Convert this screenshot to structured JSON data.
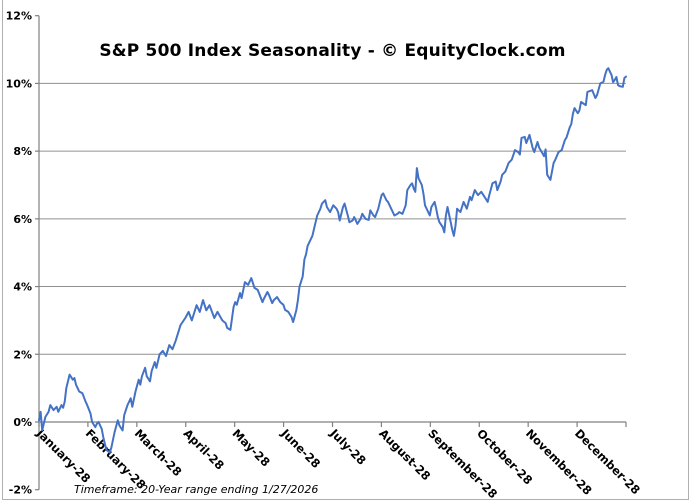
{
  "chart_data": {
    "type": "line",
    "title": "S&P 500 Index Seasonality - © EquityClock.com",
    "timeframe_note": "Timeframe: 20-Year range ending 1/27/2026",
    "legend": "none",
    "grid": "horizontal",
    "x_axis": {
      "categories": [
        "January-28",
        "February-28",
        "March-28",
        "April-28",
        "May-28",
        "June-28",
        "July-28",
        "August-28",
        "September-28",
        "October-28",
        "November-28",
        "December-28"
      ],
      "tick_count": 13,
      "label_rotation_deg": 45
    },
    "y_axis": {
      "min": -2,
      "max": 12,
      "step": 2,
      "tick_labels": [
        "12%",
        "10%",
        "8%",
        "6%",
        "4%",
        "2%",
        "0%",
        "-2%"
      ],
      "unit": "percent"
    },
    "points_unit": {
      "x": "day_of_year (0-365)",
      "y": "percent_change"
    },
    "points": [
      [
        0,
        0.05
      ],
      [
        1,
        0.3
      ],
      [
        2,
        -0.25
      ],
      [
        4,
        0.15
      ],
      [
        6,
        0.3
      ],
      [
        7,
        0.5
      ],
      [
        9,
        0.35
      ],
      [
        11,
        0.45
      ],
      [
        12,
        0.3
      ],
      [
        14,
        0.5
      ],
      [
        15,
        0.42
      ],
      [
        16,
        0.6
      ],
      [
        17,
        1.0
      ],
      [
        19,
        1.4
      ],
      [
        21,
        1.25
      ],
      [
        22,
        1.3
      ],
      [
        23,
        1.1
      ],
      [
        24,
        1.0
      ],
      [
        25,
        0.9
      ],
      [
        27,
        0.85
      ],
      [
        29,
        0.6
      ],
      [
        30,
        0.5
      ],
      [
        32,
        0.25
      ],
      [
        33,
        0.0
      ],
      [
        35,
        -0.15
      ],
      [
        36,
        -0.05
      ],
      [
        37,
        0.0
      ],
      [
        39,
        -0.2
      ],
      [
        40,
        -0.45
      ],
      [
        41,
        -0.65
      ],
      [
        42,
        -0.83
      ],
      [
        44,
        -0.9
      ],
      [
        45,
        -0.75
      ],
      [
        47,
        -0.3
      ],
      [
        49,
        0.05
      ],
      [
        50,
        -0.1
      ],
      [
        52,
        -0.25
      ],
      [
        53,
        0.2
      ],
      [
        55,
        0.5
      ],
      [
        57,
        0.7
      ],
      [
        58,
        0.45
      ],
      [
        60,
        0.9
      ],
      [
        62,
        1.25
      ],
      [
        63,
        1.1
      ],
      [
        64,
        1.35
      ],
      [
        66,
        1.6
      ],
      [
        67,
        1.35
      ],
      [
        69,
        1.2
      ],
      [
        70,
        1.5
      ],
      [
        72,
        1.77
      ],
      [
        73,
        1.6
      ],
      [
        75,
        2.0
      ],
      [
        77,
        2.1
      ],
      [
        79,
        1.95
      ],
      [
        81,
        2.27
      ],
      [
        83,
        2.15
      ],
      [
        85,
        2.4
      ],
      [
        88,
        2.86
      ],
      [
        91,
        3.07
      ],
      [
        93,
        3.25
      ],
      [
        95,
        3.0
      ],
      [
        98,
        3.45
      ],
      [
        100,
        3.25
      ],
      [
        102,
        3.6
      ],
      [
        104,
        3.3
      ],
      [
        106,
        3.45
      ],
      [
        109,
        3.07
      ],
      [
        111,
        3.25
      ],
      [
        114,
        3.0
      ],
      [
        116,
        2.92
      ],
      [
        117,
        2.78
      ],
      [
        119,
        2.72
      ],
      [
        121,
        3.4
      ],
      [
        122,
        3.54
      ],
      [
        123,
        3.46
      ],
      [
        125,
        3.81
      ],
      [
        126,
        3.66
      ],
      [
        128,
        4.13
      ],
      [
        130,
        4.05
      ],
      [
        132,
        4.25
      ],
      [
        134,
        3.96
      ],
      [
        136,
        3.9
      ],
      [
        139,
        3.54
      ],
      [
        140,
        3.66
      ],
      [
        142,
        3.84
      ],
      [
        143,
        3.75
      ],
      [
        145,
        3.51
      ],
      [
        146,
        3.6
      ],
      [
        148,
        3.69
      ],
      [
        150,
        3.54
      ],
      [
        152,
        3.46
      ],
      [
        153,
        3.31
      ],
      [
        155,
        3.25
      ],
      [
        157,
        3.1
      ],
      [
        158,
        2.95
      ],
      [
        160,
        3.3
      ],
      [
        161,
        3.6
      ],
      [
        162,
        4.0
      ],
      [
        164,
        4.3
      ],
      [
        165,
        4.8
      ],
      [
        166,
        4.95
      ],
      [
        167,
        5.2
      ],
      [
        169,
        5.4
      ],
      [
        170,
        5.5
      ],
      [
        171,
        5.7
      ],
      [
        172,
        5.9
      ],
      [
        173,
        6.1
      ],
      [
        175,
        6.3
      ],
      [
        176,
        6.45
      ],
      [
        178,
        6.55
      ],
      [
        179,
        6.35
      ],
      [
        181,
        6.2
      ],
      [
        183,
        6.4
      ],
      [
        185,
        6.3
      ],
      [
        186,
        6.2
      ],
      [
        187,
        5.95
      ],
      [
        189,
        6.35
      ],
      [
        190,
        6.45
      ],
      [
        192,
        6.1
      ],
      [
        193,
        5.9
      ],
      [
        195,
        5.95
      ],
      [
        196,
        6.05
      ],
      [
        198,
        5.85
      ],
      [
        200,
        6.0
      ],
      [
        201,
        6.15
      ],
      [
        203,
        6.0
      ],
      [
        205,
        5.97
      ],
      [
        206,
        6.25
      ],
      [
        208,
        6.1
      ],
      [
        209,
        6.05
      ],
      [
        211,
        6.3
      ],
      [
        212,
        6.5
      ],
      [
        213,
        6.7
      ],
      [
        214,
        6.75
      ],
      [
        216,
        6.55
      ],
      [
        217,
        6.5
      ],
      [
        218,
        6.4
      ],
      [
        220,
        6.2
      ],
      [
        221,
        6.1
      ],
      [
        223,
        6.15
      ],
      [
        224,
        6.2
      ],
      [
        226,
        6.15
      ],
      [
        228,
        6.4
      ],
      [
        229,
        6.85
      ],
      [
        231,
        7.0
      ],
      [
        232,
        7.05
      ],
      [
        233,
        6.9
      ],
      [
        234,
        6.8
      ],
      [
        235,
        7.5
      ],
      [
        236,
        7.2
      ],
      [
        238,
        7.0
      ],
      [
        239,
        6.75
      ],
      [
        240,
        6.4
      ],
      [
        242,
        6.2
      ],
      [
        243,
        6.1
      ],
      [
        244,
        6.35
      ],
      [
        246,
        6.5
      ],
      [
        247,
        6.3
      ],
      [
        248,
        6.05
      ],
      [
        249,
        5.9
      ],
      [
        251,
        5.76
      ],
      [
        252,
        5.6
      ],
      [
        253,
        6.1
      ],
      [
        254,
        6.35
      ],
      [
        256,
        5.9
      ],
      [
        257,
        5.67
      ],
      [
        258,
        5.5
      ],
      [
        259,
        5.8
      ],
      [
        260,
        6.3
      ],
      [
        261,
        6.25
      ],
      [
        262,
        6.2
      ],
      [
        264,
        6.5
      ],
      [
        265,
        6.4
      ],
      [
        266,
        6.3
      ],
      [
        268,
        6.65
      ],
      [
        269,
        6.55
      ],
      [
        271,
        6.85
      ],
      [
        273,
        6.7
      ],
      [
        274,
        6.75
      ],
      [
        275,
        6.8
      ],
      [
        277,
        6.65
      ],
      [
        279,
        6.5
      ],
      [
        280,
        6.7
      ],
      [
        282,
        7.05
      ],
      [
        284,
        7.1
      ],
      [
        285,
        6.85
      ],
      [
        287,
        7.1
      ],
      [
        288,
        7.3
      ],
      [
        290,
        7.4
      ],
      [
        292,
        7.65
      ],
      [
        294,
        7.75
      ],
      [
        296,
        8.03
      ],
      [
        298,
        7.97
      ],
      [
        299,
        7.9
      ],
      [
        300,
        8.39
      ],
      [
        302,
        8.42
      ],
      [
        303,
        8.24
      ],
      [
        305,
        8.48
      ],
      [
        307,
        8.09
      ],
      [
        308,
        7.97
      ],
      [
        310,
        8.27
      ],
      [
        311,
        8.1
      ],
      [
        313,
        7.94
      ],
      [
        314,
        7.85
      ],
      [
        315,
        8.05
      ],
      [
        316,
        7.3
      ],
      [
        318,
        7.15
      ],
      [
        320,
        7.65
      ],
      [
        321,
        7.74
      ],
      [
        323,
        7.97
      ],
      [
        324,
        8.0
      ],
      [
        325,
        8.03
      ],
      [
        327,
        8.33
      ],
      [
        328,
        8.4
      ],
      [
        330,
        8.7
      ],
      [
        331,
        8.8
      ],
      [
        332,
        9.1
      ],
      [
        333,
        9.27
      ],
      [
        335,
        9.12
      ],
      [
        336,
        9.2
      ],
      [
        337,
        9.45
      ],
      [
        340,
        9.36
      ],
      [
        341,
        9.75
      ],
      [
        344,
        9.8
      ],
      [
        346,
        9.57
      ],
      [
        347,
        9.66
      ],
      [
        349,
        10.0
      ],
      [
        351,
        10.05
      ],
      [
        352,
        10.25
      ],
      [
        353,
        10.4
      ],
      [
        354,
        10.45
      ],
      [
        356,
        10.25
      ],
      [
        357,
        10.04
      ],
      [
        358,
        10.1
      ],
      [
        359,
        10.19
      ],
      [
        360,
        9.95
      ],
      [
        361,
        9.92
      ],
      [
        363,
        9.9
      ],
      [
        364,
        10.16
      ],
      [
        365,
        10.2
      ]
    ]
  },
  "colors": {
    "line": "#4472C4",
    "grid": "#909090",
    "axis": "#808080",
    "text": "#000000",
    "frame_border": "#b0b0b0",
    "background": "#ffffff"
  }
}
